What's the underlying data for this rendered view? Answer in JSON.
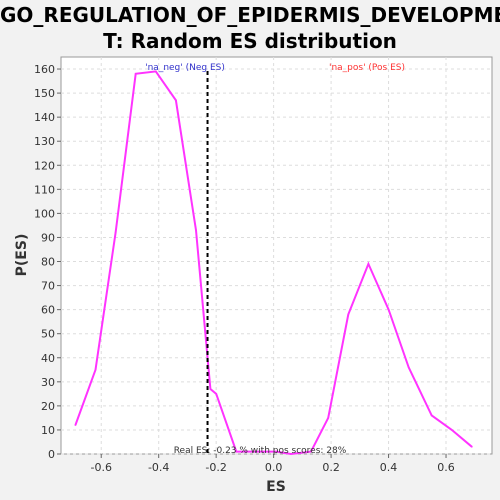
{
  "title_line1": "GO_REGULATION_OF_EPIDERMIS_DEVELOPMEN",
  "title_line2": "T: Random ES distribution",
  "chart_data": {
    "type": "line",
    "title": "GO_REGULATION_OF_EPIDERMIS_DEVELOPMENT: Random ES distribution",
    "xlabel": "ES",
    "ylabel": "P(ES)",
    "xlim": [
      -0.74,
      0.76
    ],
    "ylim": [
      0,
      165
    ],
    "x_ticks": [
      "-0.6",
      "-0.4",
      "-0.2",
      "0.0",
      "0.2",
      "0.4",
      "0.6"
    ],
    "x_tick_values": [
      -0.6,
      -0.4,
      -0.2,
      0.0,
      0.2,
      0.4,
      0.6
    ],
    "y_ticks": [
      "0",
      "10",
      "20",
      "30",
      "40",
      "50",
      "60",
      "70",
      "80",
      "90",
      "100",
      "110",
      "120",
      "130",
      "140",
      "150",
      "160"
    ],
    "y_tick_values": [
      0,
      10,
      20,
      30,
      40,
      50,
      60,
      70,
      80,
      90,
      100,
      110,
      120,
      130,
      140,
      150,
      160
    ],
    "grid": true,
    "series": [
      {
        "color": "#ff33ff",
        "x": [
          -0.69,
          -0.62,
          -0.55,
          -0.48,
          -0.41,
          -0.34,
          -0.27,
          -0.22,
          -0.2,
          -0.13,
          -0.06,
          0.01,
          0.06,
          0.13,
          0.19,
          0.26,
          0.33,
          0.4,
          0.47,
          0.55,
          0.62,
          0.69
        ],
        "y": [
          12,
          35,
          92,
          158,
          159,
          147,
          93,
          27,
          25,
          1,
          1,
          1,
          0,
          1,
          15,
          58,
          79,
          60,
          36,
          16,
          10,
          3
        ]
      }
    ],
    "real_es": -0.23,
    "annotations": {
      "neg_label": "'na_neg' (Neg ES)",
      "pos_label": "'na_pos' (Pos ES)",
      "bottom_note": "Real ES: -0.23 % with pos scores: 28%"
    },
    "colors": {
      "neg": "#3333cc",
      "pos": "#ff3333",
      "line": "#ff33ff",
      "real_es": "#000000"
    }
  }
}
